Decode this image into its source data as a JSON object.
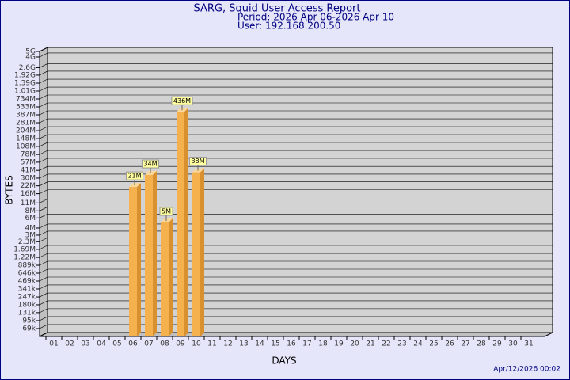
{
  "chart_data": {
    "type": "bar",
    "title": "SARG, Squid User Access Report",
    "subtitle": [
      "Period: 2026 Apr 06-2026 Apr 10",
      "User: 192.168.200.50"
    ],
    "xlabel": "DAYS",
    "ylabel": "BYTES",
    "footer": "Apr/12/2026 00:02",
    "categories": [
      "01",
      "02",
      "03",
      "04",
      "05",
      "06",
      "07",
      "08",
      "09",
      "10",
      "11",
      "12",
      "13",
      "14",
      "15",
      "16",
      "17",
      "18",
      "19",
      "20",
      "21",
      "22",
      "23",
      "24",
      "25",
      "26",
      "27",
      "28",
      "29",
      "30",
      "31"
    ],
    "values": [
      null,
      null,
      null,
      null,
      null,
      21000000,
      34000000,
      5000000,
      436000000,
      38000000,
      null,
      null,
      null,
      null,
      null,
      null,
      null,
      null,
      null,
      null,
      null,
      null,
      null,
      null,
      null,
      null,
      null,
      null,
      null,
      null,
      null
    ],
    "value_labels": [
      null,
      null,
      null,
      null,
      null,
      "21M",
      "34M",
      "5M",
      "436M",
      "38M",
      null,
      null,
      null,
      null,
      null,
      null,
      null,
      null,
      null,
      null,
      null,
      null,
      null,
      null,
      null,
      null,
      null,
      null,
      null,
      null,
      null
    ],
    "color": "#f5b14d",
    "log_scale": true,
    "grid": true,
    "ylim": [
      50000,
      5000000000
    ],
    "yticks": [
      {
        "value": 69000,
        "label": "69k"
      },
      {
        "value": 95000,
        "label": "95k"
      },
      {
        "value": 131000,
        "label": "131k"
      },
      {
        "value": 180000,
        "label": "180k"
      },
      {
        "value": 247000,
        "label": "247k"
      },
      {
        "value": 341000,
        "label": "341k"
      },
      {
        "value": 469000,
        "label": "469k"
      },
      {
        "value": 646000,
        "label": "646k"
      },
      {
        "value": 889000,
        "label": "889k"
      },
      {
        "value": 1220000,
        "label": "1.22M"
      },
      {
        "value": 1690000,
        "label": "1.69M"
      },
      {
        "value": 2300000,
        "label": "2.3M"
      },
      {
        "value": 3000000,
        "label": "3M"
      },
      {
        "value": 4000000,
        "label": "4M"
      },
      {
        "value": 6000000,
        "label": "6M"
      },
      {
        "value": 8000000,
        "label": "8M"
      },
      {
        "value": 11000000,
        "label": "11M"
      },
      {
        "value": 16000000,
        "label": "16M"
      },
      {
        "value": 22000000,
        "label": "22M"
      },
      {
        "value": 30000000,
        "label": "30M"
      },
      {
        "value": 41000000,
        "label": "41M"
      },
      {
        "value": 57000000,
        "label": "57M"
      },
      {
        "value": 78000000,
        "label": "78M"
      },
      {
        "value": 108000000,
        "label": "108M"
      },
      {
        "value": 148000000,
        "label": "148M"
      },
      {
        "value": 204000000,
        "label": "204M"
      },
      {
        "value": 281000000,
        "label": "281M"
      },
      {
        "value": 387000000,
        "label": "387M"
      },
      {
        "value": 533000000,
        "label": "533M"
      },
      {
        "value": 734000000,
        "label": "734M"
      },
      {
        "value": 1010000000,
        "label": "1.01G"
      },
      {
        "value": 1390000000,
        "label": "1.39G"
      },
      {
        "value": 1920000000,
        "label": "1.92G"
      },
      {
        "value": 2600000000,
        "label": "2.6G"
      },
      {
        "value": 4000000000,
        "label": "4G"
      },
      {
        "value": 5000000000,
        "label": "5G"
      }
    ]
  }
}
